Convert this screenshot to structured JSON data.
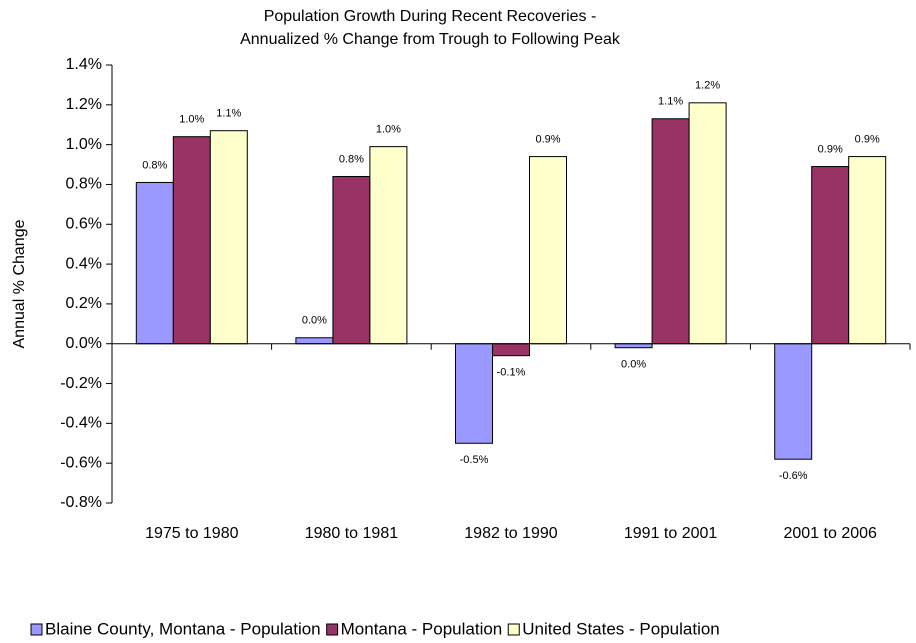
{
  "chart_data": {
    "type": "bar",
    "title": [
      "Population Growth During Recent Recoveries -",
      "Annualized % Change from Trough to Following Peak"
    ],
    "y_label": "Annual % Change",
    "categories": [
      "1975 to 1980",
      "1980 to 1981",
      "1982 to 1990",
      "1991 to 2001",
      "2001 to 2006"
    ],
    "series": [
      {
        "name": "Blaine County, Montana - Population",
        "color": "#9999ff",
        "values": [
          0.81,
          0.03,
          -0.5,
          -0.02,
          -0.58
        ],
        "value_labels": [
          "0.8%",
          "0.0%",
          "-0.5%",
          "0.0%",
          "-0.6%"
        ]
      },
      {
        "name": "Montana - Population",
        "color": "#993366",
        "values": [
          1.04,
          0.84,
          -0.06,
          1.13,
          0.89
        ],
        "value_labels": [
          "1.0%",
          "0.8%",
          "-0.1%",
          "1.1%",
          "0.9%"
        ]
      },
      {
        "name": "United States - Population",
        "color": "#ffffcc",
        "values": [
          1.07,
          0.99,
          0.94,
          1.21,
          0.94
        ],
        "value_labels": [
          "1.1%",
          "1.0%",
          "0.9%",
          "1.2%",
          "0.9%"
        ]
      }
    ],
    "ylim": [
      -0.8,
      1.4
    ],
    "yticks": [
      {
        "value": -0.8,
        "label": "-0.8%"
      },
      {
        "value": -0.6,
        "label": "-0.6%"
      },
      {
        "value": -0.4,
        "label": "-0.4%"
      },
      {
        "value": -0.2,
        "label": "-0.2%"
      },
      {
        "value": 0,
        "label": "0.0%"
      },
      {
        "value": 0.2,
        "label": "0.2%"
      },
      {
        "value": 0.4,
        "label": "0.4%"
      },
      {
        "value": 0.6,
        "label": "0.6%"
      },
      {
        "value": 0.8,
        "label": "0.8%"
      },
      {
        "value": 1.0,
        "label": "1.0%"
      },
      {
        "value": 1.2,
        "label": "1.2%"
      },
      {
        "value": 1.4,
        "label": "1.4%"
      }
    ],
    "grid": false,
    "legend": "bottom"
  }
}
